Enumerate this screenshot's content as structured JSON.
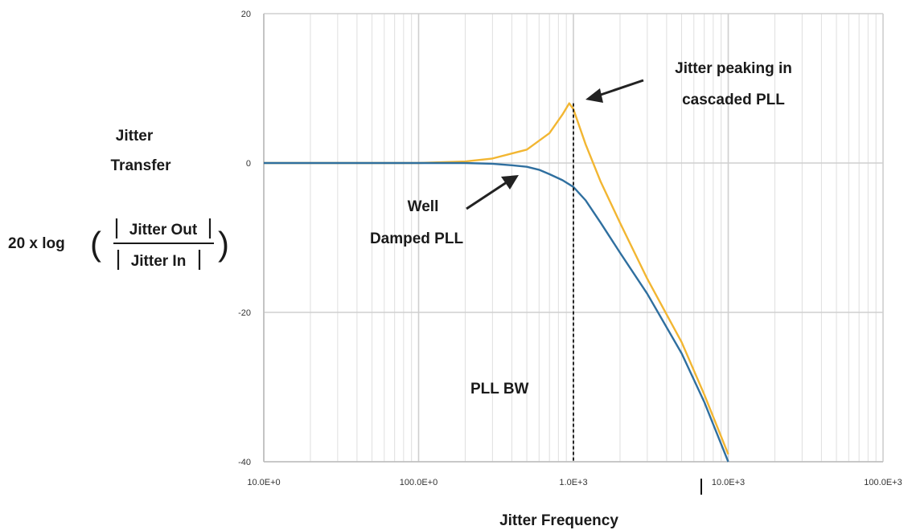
{
  "chart_data": {
    "type": "line",
    "x_scale": "log",
    "xlim": [
      10,
      100000
    ],
    "ylim": [
      -40,
      20
    ],
    "grid": true,
    "y_ticks": [
      "20",
      "0",
      "-20",
      "-40"
    ],
    "y_tick_values": [
      20,
      0,
      -20,
      -40
    ],
    "x_ticks": [
      "10.0E+0",
      "100.0E+0",
      "1.0E+3",
      "10.0E+3",
      "100.0E+3"
    ],
    "x_tick_values": [
      10,
      100,
      1000,
      10000,
      100000
    ],
    "ylabel_lines": [
      "Jitter",
      "Transfer"
    ],
    "ylabel_formula": {
      "prefix": "20 x log",
      "numerator": "Jitter Out",
      "denominator": "Jitter In"
    },
    "xlabel": "Jitter Frequency",
    "series": [
      {
        "color": "#f2b632",
        "points": [
          [
            10,
            0
          ],
          [
            100,
            0
          ],
          [
            200,
            0.2
          ],
          [
            300,
            0.6
          ],
          [
            500,
            1.8
          ],
          [
            700,
            4.0
          ],
          [
            850,
            6.5
          ],
          [
            940,
            8.0
          ],
          [
            1000,
            7.2
          ],
          [
            1200,
            2.5
          ],
          [
            1500,
            -2.5
          ],
          [
            2000,
            -8
          ],
          [
            3000,
            -15.5
          ],
          [
            5000,
            -24
          ],
          [
            7000,
            -31
          ],
          [
            10000,
            -39
          ]
        ]
      },
      {
        "color": "#2f6f9f",
        "points": [
          [
            10,
            0
          ],
          [
            100,
            0
          ],
          [
            200,
            0
          ],
          [
            300,
            -0.1
          ],
          [
            400,
            -0.3
          ],
          [
            500,
            -0.5
          ],
          [
            600,
            -0.9
          ],
          [
            700,
            -1.5
          ],
          [
            850,
            -2.3
          ],
          [
            1000,
            -3.2
          ],
          [
            1200,
            -5
          ],
          [
            1500,
            -8
          ],
          [
            2000,
            -12
          ],
          [
            3000,
            -17.5
          ],
          [
            5000,
            -25.5
          ],
          [
            7000,
            -32
          ],
          [
            10000,
            -40
          ]
        ]
      }
    ],
    "annotations": [
      {
        "lines": [
          "Jitter peaking in",
          "cascaded PLL"
        ]
      },
      {
        "lines": [
          "Well",
          "Damped PLL"
        ]
      },
      {
        "lines": [
          "PLL BW"
        ]
      }
    ],
    "markers": {
      "bandwidth_x": 1000
    }
  }
}
